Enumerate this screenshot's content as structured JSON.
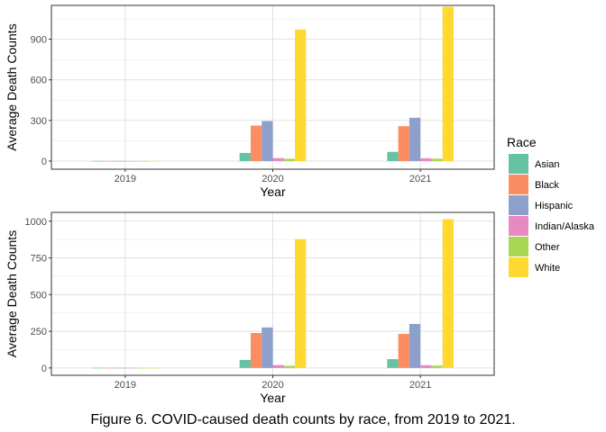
{
  "caption": "Figure 6. COVID-caused death counts by race, from 2019 to 2021.",
  "legend": {
    "title": "Race",
    "placement": "right",
    "entries": [
      {
        "label": "Asian",
        "color": "#66C2A5"
      },
      {
        "label": "Black",
        "color": "#FC8D62"
      },
      {
        "label": "Hispanic",
        "color": "#8DA0CB"
      },
      {
        "label": "Indian/Alaska",
        "color": "#E78AC3"
      },
      {
        "label": "Other",
        "color": "#A6D854"
      },
      {
        "label": "White",
        "color": "#FFD92F"
      }
    ]
  },
  "chart_data": [
    {
      "type": "bar",
      "xlabel": "Year",
      "ylabel": "Average Death Counts",
      "categories": [
        "2019",
        "2020",
        "2021"
      ],
      "yticks": [
        0,
        300,
        600,
        900
      ],
      "ylim": [
        -60,
        1150
      ],
      "grid": true,
      "series": [
        {
          "name": "Asian",
          "values": [
            1,
            60,
            68
          ]
        },
        {
          "name": "Black",
          "values": [
            1,
            262,
            258
          ]
        },
        {
          "name": "Hispanic",
          "values": [
            1,
            295,
            320
          ]
        },
        {
          "name": "Indian/Alaska",
          "values": [
            1,
            22,
            21
          ]
        },
        {
          "name": "Other",
          "values": [
            1,
            17,
            18
          ]
        },
        {
          "name": "White",
          "values": [
            1,
            972,
            1140
          ]
        }
      ]
    },
    {
      "type": "bar",
      "xlabel": "Year",
      "ylabel": "Average Death Counts",
      "categories": [
        "2019",
        "2020",
        "2021"
      ],
      "yticks": [
        0,
        250,
        500,
        750,
        1000
      ],
      "ylim": [
        -50,
        1060
      ],
      "grid": true,
      "series": [
        {
          "name": "Asian",
          "values": [
            1,
            55,
            60
          ]
        },
        {
          "name": "Black",
          "values": [
            1,
            238,
            232
          ]
        },
        {
          "name": "Hispanic",
          "values": [
            1,
            276,
            300
          ]
        },
        {
          "name": "Indian/Alaska",
          "values": [
            1,
            20,
            19
          ]
        },
        {
          "name": "Other",
          "values": [
            1,
            15,
            16
          ]
        },
        {
          "name": "White",
          "values": [
            1,
            878,
            1013
          ]
        }
      ]
    }
  ]
}
